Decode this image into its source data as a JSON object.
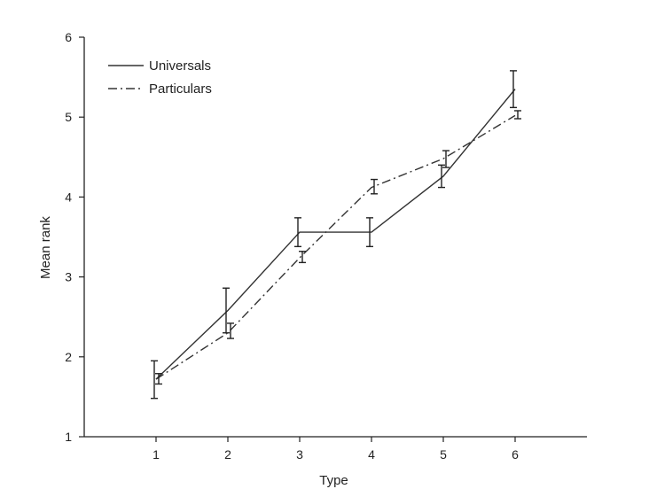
{
  "chart_data": {
    "type": "line",
    "xlabel": "Type",
    "ylabel": "Mean rank",
    "xlim": [
      0,
      7
    ],
    "ylim": [
      1,
      6
    ],
    "x_ticks": [
      "1",
      "2",
      "3",
      "4",
      "5",
      "6"
    ],
    "y_ticks": [
      "1",
      "2",
      "3",
      "4",
      "5",
      "6"
    ],
    "grid": false,
    "legend_position": "top-left",
    "series": [
      {
        "name": "Universals",
        "style": "solid",
        "x": [
          1,
          2,
          3,
          4,
          5,
          6
        ],
        "y": [
          1.72,
          2.58,
          3.56,
          3.56,
          4.26,
          5.35
        ],
        "err_low": [
          1.48,
          2.3,
          3.38,
          3.38,
          4.12,
          5.12
        ],
        "err_high": [
          1.95,
          2.86,
          3.74,
          3.74,
          4.4,
          5.58
        ]
      },
      {
        "name": "Particulars",
        "style": "dash-dot",
        "x": [
          1,
          2,
          3,
          4,
          5,
          6
        ],
        "y": [
          1.72,
          2.3,
          3.24,
          4.12,
          4.48,
          5.02
        ],
        "err_low": [
          1.66,
          2.23,
          3.18,
          4.04,
          4.37,
          4.98
        ],
        "err_high": [
          1.79,
          2.42,
          3.32,
          4.22,
          4.58,
          5.08
        ]
      }
    ]
  }
}
